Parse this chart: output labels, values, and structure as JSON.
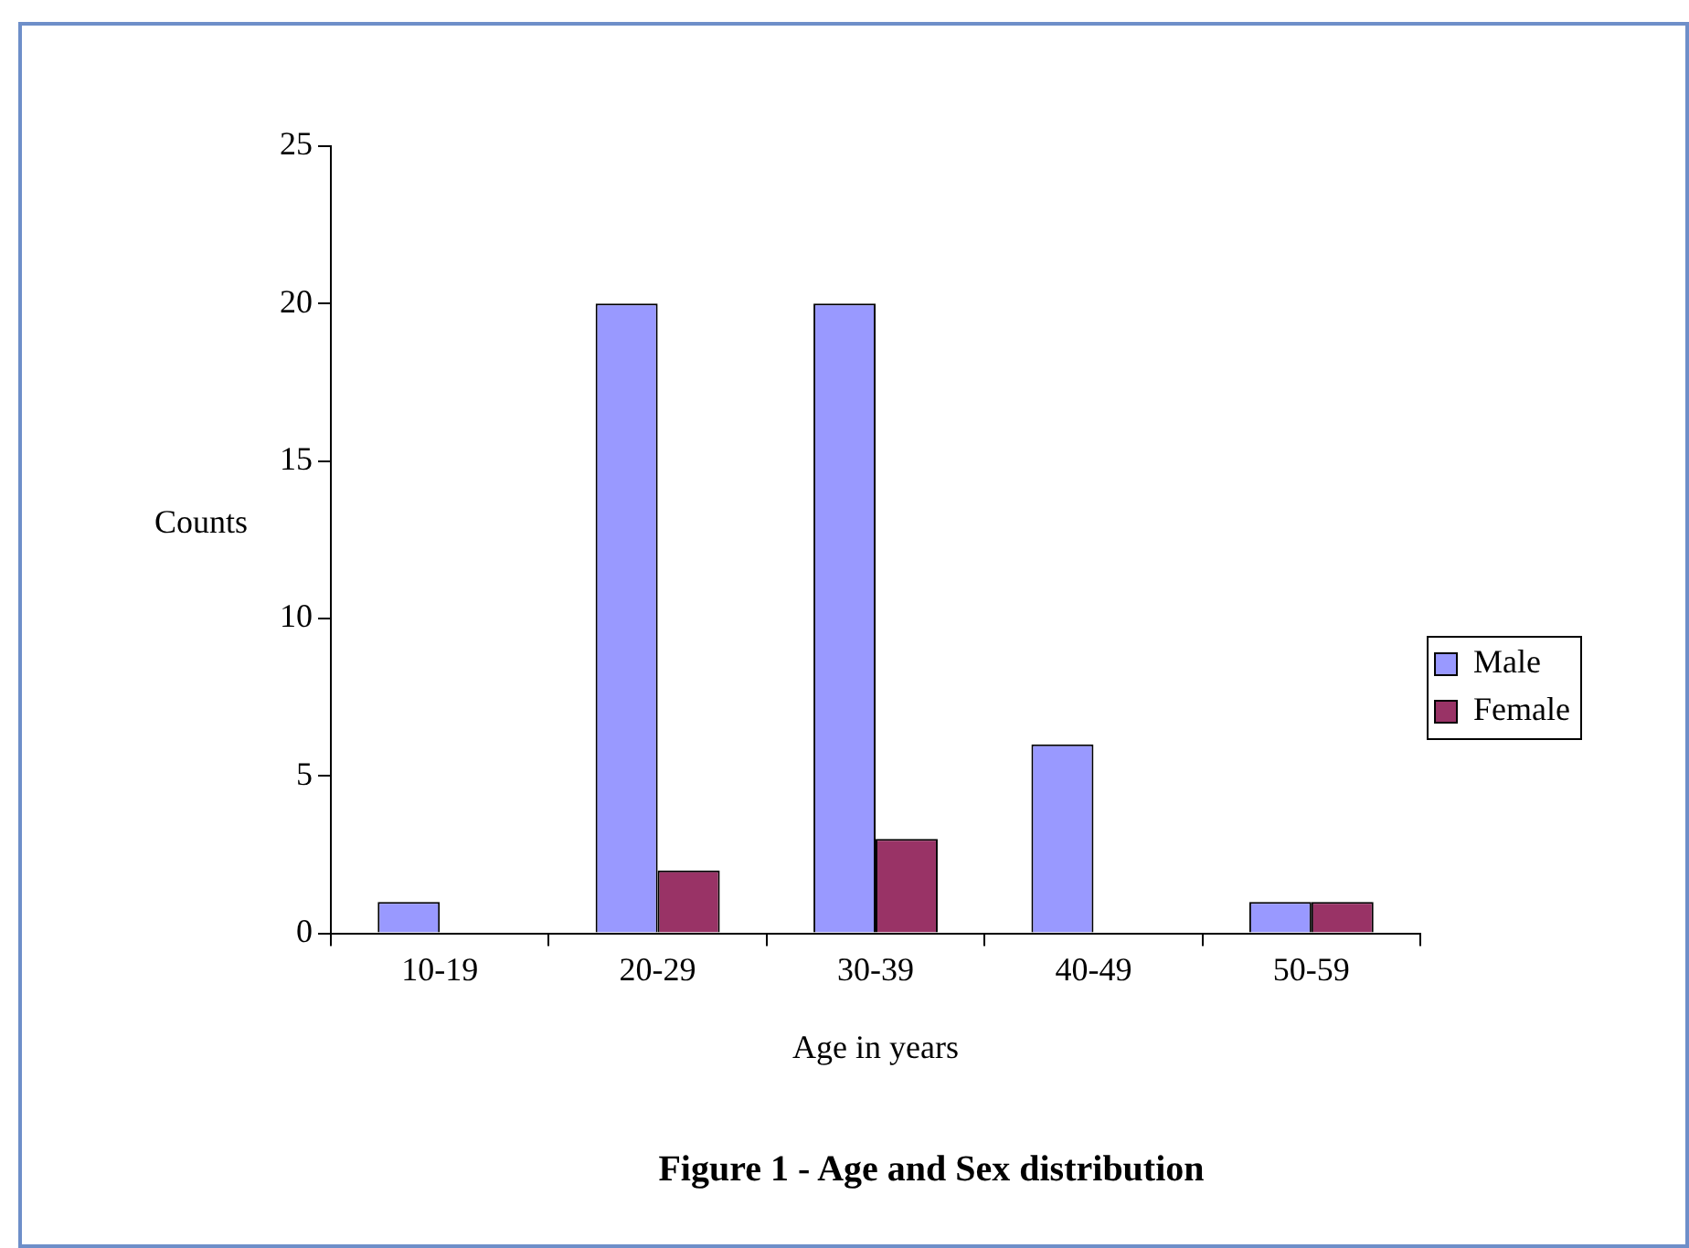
{
  "chart_data": {
    "type": "bar",
    "title": "Figure 1 - Age and Sex distribution",
    "xlabel": "Age in years",
    "ylabel": "Counts",
    "categories": [
      "10-19",
      "20-29",
      "30-39",
      "40-49",
      "50-59"
    ],
    "series": [
      {
        "name": "Male",
        "color": "#9999ff",
        "values": [
          1,
          20,
          20,
          6,
          1
        ]
      },
      {
        "name": "Female",
        "color": "#993366",
        "values": [
          0,
          2,
          3,
          0,
          1
        ]
      }
    ],
    "ylim": [
      0,
      25
    ],
    "yticks": [
      0,
      5,
      10,
      15,
      20,
      25
    ],
    "grid": false,
    "legend": "right"
  }
}
